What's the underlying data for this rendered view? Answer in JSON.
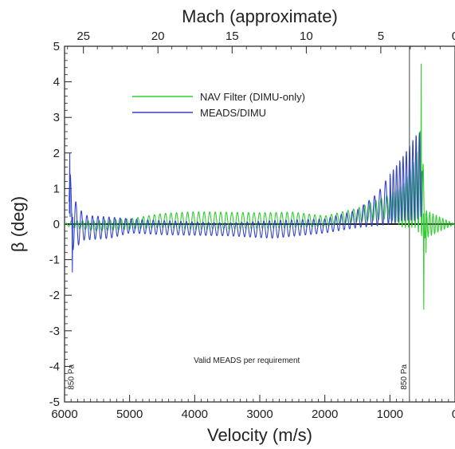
{
  "chart_data": {
    "type": "line",
    "xlabel": "Velocity (m/s)",
    "x2label": "Mach (approximate)",
    "ylabel": "β (deg)",
    "xlim": [
      6000,
      0
    ],
    "ylim": [
      -5,
      5
    ],
    "x_ticks": [
      "6000",
      "5000",
      "4000",
      "3000",
      "2000",
      "1000",
      "0"
    ],
    "x2_ticks": [
      {
        "label": "25",
        "velocity": 5710
      },
      {
        "label": "20",
        "velocity": 4565
      },
      {
        "label": "15",
        "velocity": 3425
      },
      {
        "label": "10",
        "velocity": 2285
      },
      {
        "label": "5",
        "velocity": 1140
      },
      {
        "label": "0",
        "velocity": 0
      }
    ],
    "y_ticks": [
      "5",
      "4",
      "3",
      "2",
      "1",
      "0",
      "-1",
      "-2",
      "-3",
      "-4",
      "-5"
    ],
    "grid": false,
    "legend": "upper-left inside",
    "series": [
      {
        "name": "NAV Filter (DIMU-only)",
        "color": "#33cc33",
        "envelope": [
          {
            "v": 6000,
            "c": 0.0,
            "a": 0.0
          },
          {
            "v": 5900,
            "c": 0.0,
            "a": 0.1
          },
          {
            "v": 5500,
            "c": -0.05,
            "a": 0.15
          },
          {
            "v": 5000,
            "c": 0.0,
            "a": 0.15
          },
          {
            "v": 4500,
            "c": 0.1,
            "a": 0.2
          },
          {
            "v": 4000,
            "c": 0.1,
            "a": 0.25
          },
          {
            "v": 3000,
            "c": 0.1,
            "a": 0.22
          },
          {
            "v": 2500,
            "c": 0.12,
            "a": 0.22
          },
          {
            "v": 2000,
            "c": 0.08,
            "a": 0.15
          },
          {
            "v": 1500,
            "c": 0.25,
            "a": 0.2
          },
          {
            "v": 1000,
            "c": 0.5,
            "a": 0.35
          },
          {
            "v": 800,
            "c": 0.5,
            "a": 0.6
          },
          {
            "v": 600,
            "c": 0.9,
            "a": 1.0
          },
          {
            "v": 520,
            "c": 1.2,
            "a": 1.6
          },
          {
            "v": 500,
            "c": 1.0,
            "a": 1.2
          },
          {
            "v": 460,
            "c": 0.0,
            "a": 0.4
          },
          {
            "v": 0,
            "c": 0.0,
            "a": 0.0
          }
        ],
        "spikes": [
          {
            "v": 520,
            "y": 4.5
          },
          {
            "v": 480,
            "y": -2.4
          },
          {
            "v": 445,
            "y": -0.8
          }
        ]
      },
      {
        "name": "MEADS/DIMU",
        "color": "#3344cc",
        "envelope": [
          {
            "v": 5930,
            "c": 0.4,
            "a": 1.2
          },
          {
            "v": 5850,
            "c": 0.0,
            "a": 0.7
          },
          {
            "v": 5700,
            "c": -0.1,
            "a": 0.35
          },
          {
            "v": 5300,
            "c": -0.1,
            "a": 0.3
          },
          {
            "v": 5000,
            "c": -0.05,
            "a": 0.2
          },
          {
            "v": 4500,
            "c": -0.1,
            "a": 0.2
          },
          {
            "v": 3500,
            "c": -0.15,
            "a": 0.18
          },
          {
            "v": 2800,
            "c": -0.15,
            "a": 0.25
          },
          {
            "v": 2000,
            "c": -0.05,
            "a": 0.2
          },
          {
            "v": 1500,
            "c": 0.15,
            "a": 0.25
          },
          {
            "v": 1200,
            "c": 0.4,
            "a": 0.45
          },
          {
            "v": 1000,
            "c": 0.7,
            "a": 0.7
          },
          {
            "v": 800,
            "c": 1.0,
            "a": 0.9
          },
          {
            "v": 600,
            "c": 1.3,
            "a": 1.2
          },
          {
            "v": 520,
            "c": 1.4,
            "a": 1.2
          },
          {
            "v": 505,
            "c": 1.2,
            "a": 0.5
          }
        ],
        "spikes": [
          {
            "v": 5920,
            "y": 2.0
          },
          {
            "v": 5880,
            "y": -1.35
          }
        ]
      }
    ],
    "annotations": [
      {
        "text": "850 Pa",
        "velocity": 5860,
        "y": -4.3,
        "rotated": true
      },
      {
        "text": "850 Pa",
        "velocity": 745,
        "y": -4.3,
        "rotated": true
      },
      {
        "text": "Valid MEADS per requirement",
        "velocity": 3200,
        "y": -4.3,
        "rotated": false
      }
    ],
    "vertical_line_velocity": 700,
    "zero_line": true
  }
}
